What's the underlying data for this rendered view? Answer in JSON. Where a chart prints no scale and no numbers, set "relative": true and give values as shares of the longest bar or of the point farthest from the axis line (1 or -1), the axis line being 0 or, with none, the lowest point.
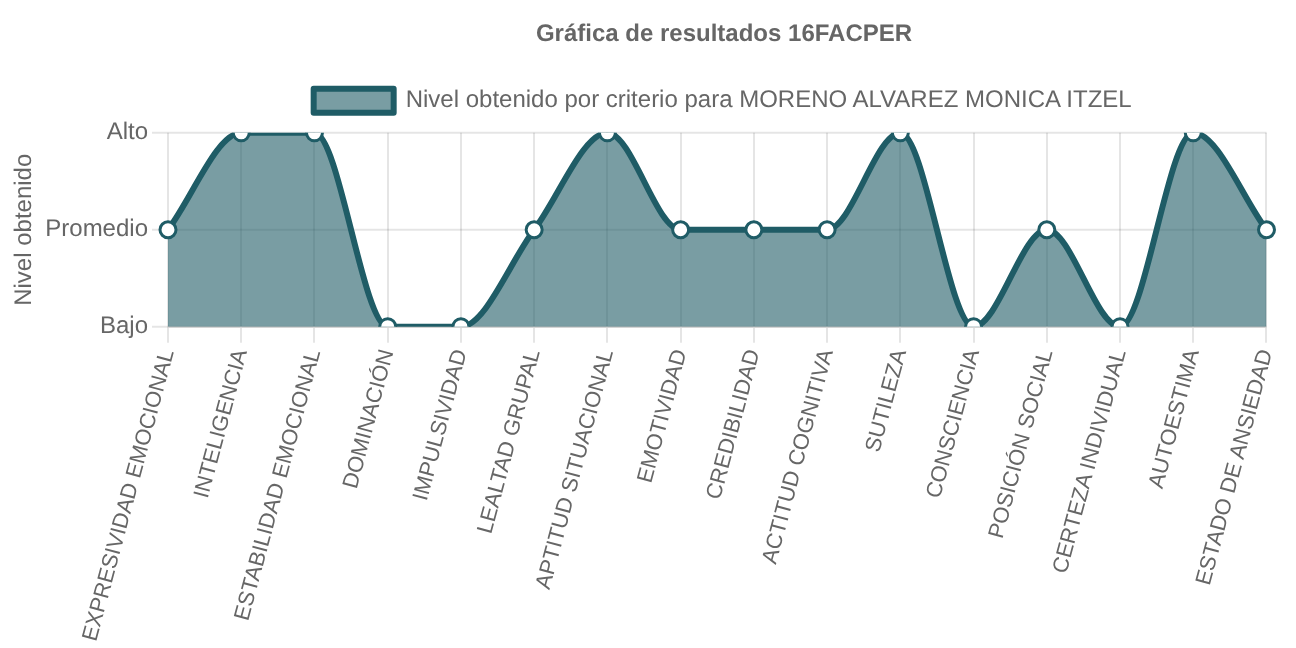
{
  "chart_data": {
    "type": "area",
    "title": "Gráfica de resultados 16FACPER",
    "ylabel": "Nivel obtenido",
    "relative": true,
    "categories": [
      "EXPRESIVIDAD EMOCIONAL",
      "INTELIGENCIA",
      "ESTABILIDAD EMOCIONAL",
      "DOMINACIÓN",
      "IMPULSIVIDAD",
      "LEALTAD GRUPAL",
      "APTITUD SITUACIONAL",
      "EMOTIVIDAD",
      "CREDIBILIDAD",
      "ACTITUD COGNITIVA",
      "SUTILEZA",
      "CONSCIENCIA",
      "POSICIÓN SOCIAL",
      "CERTEZA INDIVIDUAL",
      "AUTOESTIMA",
      "ESTADO DE ANSIEDAD"
    ],
    "series": [
      {
        "name": "Nivel obtenido por criterio para MORENO ALVAREZ MONICA ITZEL",
        "color": "#1f5c66",
        "values": [
          0.5,
          1,
          1,
          0,
          0,
          0.5,
          1,
          0.5,
          0.5,
          0.5,
          1,
          0,
          0.5,
          0,
          1,
          0.5
        ]
      }
    ],
    "annotations": [
      "Bajo",
      "Promedio",
      "Alto"
    ],
    "grid": true,
    "legend": "top",
    "marker": "circle"
  }
}
